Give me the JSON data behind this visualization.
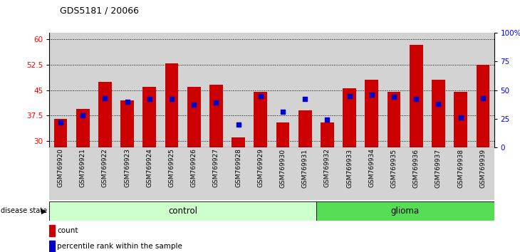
{
  "title": "GDS5181 / 20066",
  "samples": [
    "GSM769920",
    "GSM769921",
    "GSM769922",
    "GSM769923",
    "GSM769924",
    "GSM769925",
    "GSM769926",
    "GSM769927",
    "GSM769928",
    "GSM769929",
    "GSM769930",
    "GSM769931",
    "GSM769932",
    "GSM769933",
    "GSM769934",
    "GSM769935",
    "GSM769936",
    "GSM769937",
    "GSM769938",
    "GSM769939"
  ],
  "counts": [
    36.5,
    39.5,
    47.5,
    42.0,
    46.0,
    53.0,
    46.0,
    46.5,
    31.0,
    44.5,
    35.5,
    39.0,
    35.5,
    45.5,
    48.0,
    44.5,
    58.5,
    48.0,
    44.5,
    52.5
  ],
  "percentile_ranks": [
    22,
    28,
    43,
    40,
    42,
    42,
    37,
    39,
    20,
    45,
    31,
    42,
    24,
    45,
    46,
    44,
    42,
    38,
    26,
    43
  ],
  "control_count": 12,
  "glioma_count": 8,
  "ylim_left": [
    28,
    62
  ],
  "ylim_right": [
    0,
    100
  ],
  "yticks_left": [
    30,
    37.5,
    45,
    52.5,
    60
  ],
  "yticks_right": [
    0,
    25,
    50,
    75,
    100
  ],
  "ytick_labels_right": [
    "0",
    "25",
    "50",
    "75",
    "100%"
  ],
  "bar_color": "#cc0000",
  "dot_color": "#0000cc",
  "control_bg": "#ccffcc",
  "glioma_bg": "#55dd55",
  "plot_bg": "#d3d3d3",
  "bar_bottom": 28,
  "bar_width": 0.6
}
